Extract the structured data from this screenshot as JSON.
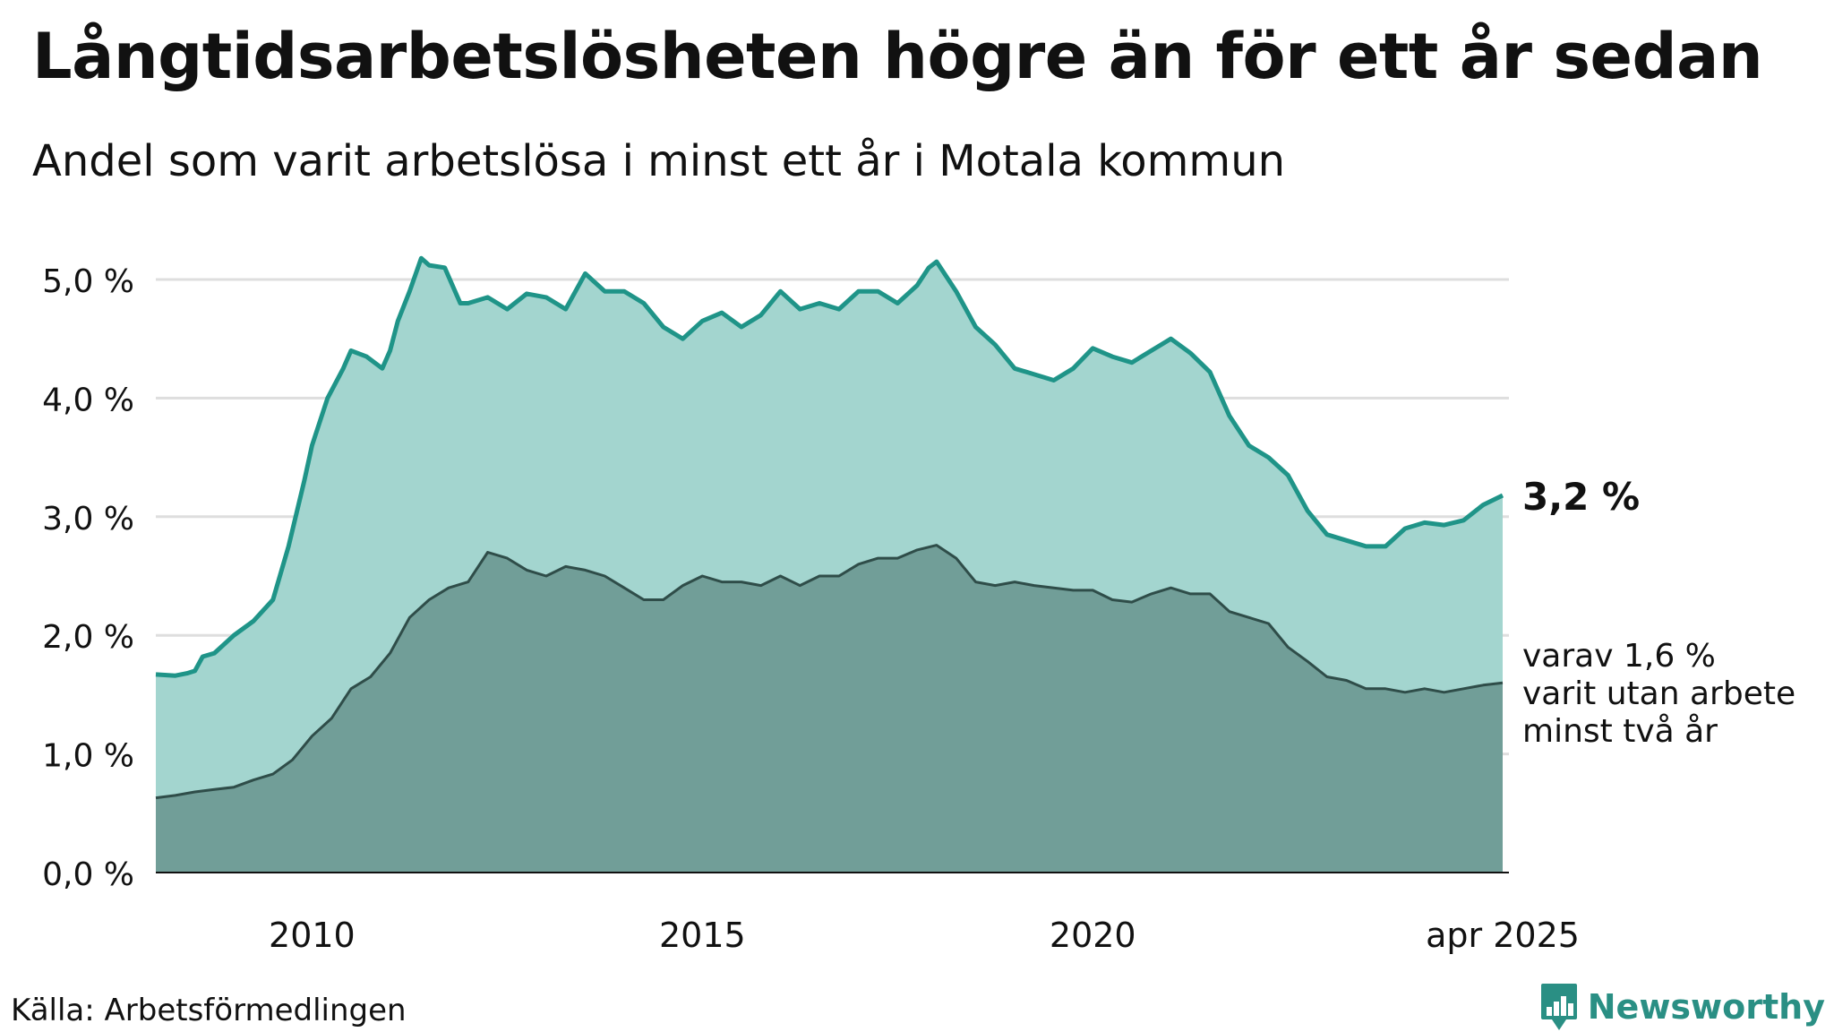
{
  "title": "Långtidsarbetslösheten högre än för ett år sedan",
  "subtitle": "Andel som varit arbetslösa i minst ett år i Motala kommun",
  "source": "Källa: Arbetsförmedlingen",
  "brand": {
    "name": "Newsworthy",
    "logo_icon": "newsworthy-logo-icon"
  },
  "colors": {
    "upper_fill": "#a3d5cf",
    "upper_line": "#1f9488",
    "lower_fill": "#719e98",
    "lower_line": "#2f4d49",
    "grid": "#dedede",
    "text": "#111111"
  },
  "chart_data": {
    "type": "area",
    "x_unit": "year",
    "xlim": [
      2008.0,
      2025.33
    ],
    "ylim": [
      0,
      5.0
    ],
    "grid": true,
    "y_ticks": [
      0,
      1,
      2,
      3,
      4,
      5
    ],
    "y_tick_labels": [
      "0,0 %",
      "1,0 %",
      "2,0 %",
      "3,0 %",
      "4,0 %",
      "5,0 %"
    ],
    "x_ticks": [
      2010,
      2015,
      2020,
      2025.25
    ],
    "x_tick_labels": [
      "2010",
      "2015",
      "2020",
      "apr 2025"
    ],
    "series": [
      {
        "key": "minst_ett_ar",
        "end_label": "3,2 %",
        "x": [
          2008.0,
          2008.25,
          2008.4,
          2008.5,
          2008.6,
          2008.75,
          2009.0,
          2009.25,
          2009.5,
          2009.7,
          2009.9,
          2010.0,
          2010.2,
          2010.4,
          2010.5,
          2010.7,
          2010.9,
          2011.0,
          2011.1,
          2011.25,
          2011.4,
          2011.5,
          2011.7,
          2011.9,
          2012.0,
          2012.25,
          2012.5,
          2012.75,
          2013.0,
          2013.25,
          2013.5,
          2013.75,
          2014.0,
          2014.25,
          2014.5,
          2014.75,
          2015.0,
          2015.25,
          2015.5,
          2015.75,
          2016.0,
          2016.25,
          2016.5,
          2016.75,
          2017.0,
          2017.25,
          2017.5,
          2017.75,
          2017.9,
          2018.0,
          2018.25,
          2018.5,
          2018.75,
          2019.0,
          2019.25,
          2019.5,
          2019.75,
          2020.0,
          2020.25,
          2020.5,
          2020.75,
          2021.0,
          2021.25,
          2021.5,
          2021.75,
          2022.0,
          2022.25,
          2022.5,
          2022.75,
          2023.0,
          2023.25,
          2023.5,
          2023.75,
          2024.0,
          2024.25,
          2024.5,
          2024.75,
          2025.0,
          2025.25
        ],
        "values": [
          1.67,
          1.66,
          1.68,
          1.7,
          1.82,
          1.85,
          2.0,
          2.12,
          2.3,
          2.75,
          3.3,
          3.6,
          4.0,
          4.25,
          4.4,
          4.35,
          4.25,
          4.4,
          4.65,
          4.9,
          5.18,
          5.12,
          5.1,
          4.8,
          4.8,
          4.85,
          4.75,
          4.88,
          4.85,
          4.75,
          5.05,
          4.9,
          4.9,
          4.8,
          4.6,
          4.5,
          4.65,
          4.72,
          4.6,
          4.7,
          4.9,
          4.75,
          4.8,
          4.75,
          4.9,
          4.9,
          4.8,
          4.95,
          5.1,
          5.15,
          4.9,
          4.6,
          4.45,
          4.25,
          4.2,
          4.15,
          4.25,
          4.42,
          4.35,
          4.3,
          4.4,
          4.5,
          4.38,
          4.22,
          3.85,
          3.6,
          3.5,
          3.35,
          3.05,
          2.85,
          2.8,
          2.75,
          2.75,
          2.9,
          2.95,
          2.93,
          2.97,
          3.1,
          3.18
        ]
      },
      {
        "key": "minst_tva_ar",
        "end_label_lines": [
          "varav 1,6 %",
          "varit utan arbete",
          "minst två år"
        ],
        "x": [
          2008.0,
          2008.25,
          2008.5,
          2008.75,
          2009.0,
          2009.25,
          2009.5,
          2009.75,
          2010.0,
          2010.25,
          2010.5,
          2010.75,
          2011.0,
          2011.25,
          2011.5,
          2011.75,
          2012.0,
          2012.25,
          2012.5,
          2012.75,
          2013.0,
          2013.25,
          2013.5,
          2013.75,
          2014.0,
          2014.25,
          2014.5,
          2014.75,
          2015.0,
          2015.25,
          2015.5,
          2015.75,
          2016.0,
          2016.25,
          2016.5,
          2016.75,
          2017.0,
          2017.25,
          2017.5,
          2017.75,
          2018.0,
          2018.25,
          2018.5,
          2018.75,
          2019.0,
          2019.25,
          2019.5,
          2019.75,
          2020.0,
          2020.25,
          2020.5,
          2020.75,
          2021.0,
          2021.25,
          2021.5,
          2021.75,
          2022.0,
          2022.25,
          2022.5,
          2022.75,
          2023.0,
          2023.25,
          2023.5,
          2023.75,
          2024.0,
          2024.25,
          2024.5,
          2024.75,
          2025.0,
          2025.25
        ],
        "values": [
          0.63,
          0.65,
          0.68,
          0.7,
          0.72,
          0.78,
          0.83,
          0.95,
          1.15,
          1.3,
          1.55,
          1.65,
          1.85,
          2.15,
          2.3,
          2.4,
          2.45,
          2.7,
          2.65,
          2.55,
          2.5,
          2.58,
          2.55,
          2.5,
          2.4,
          2.3,
          2.3,
          2.42,
          2.5,
          2.45,
          2.45,
          2.42,
          2.5,
          2.42,
          2.5,
          2.5,
          2.6,
          2.65,
          2.65,
          2.72,
          2.76,
          2.65,
          2.45,
          2.42,
          2.45,
          2.42,
          2.4,
          2.38,
          2.38,
          2.3,
          2.28,
          2.35,
          2.4,
          2.35,
          2.35,
          2.2,
          2.15,
          2.1,
          1.9,
          1.78,
          1.65,
          1.62,
          1.55,
          1.55,
          1.52,
          1.55,
          1.52,
          1.55,
          1.58,
          1.6
        ]
      }
    ]
  }
}
